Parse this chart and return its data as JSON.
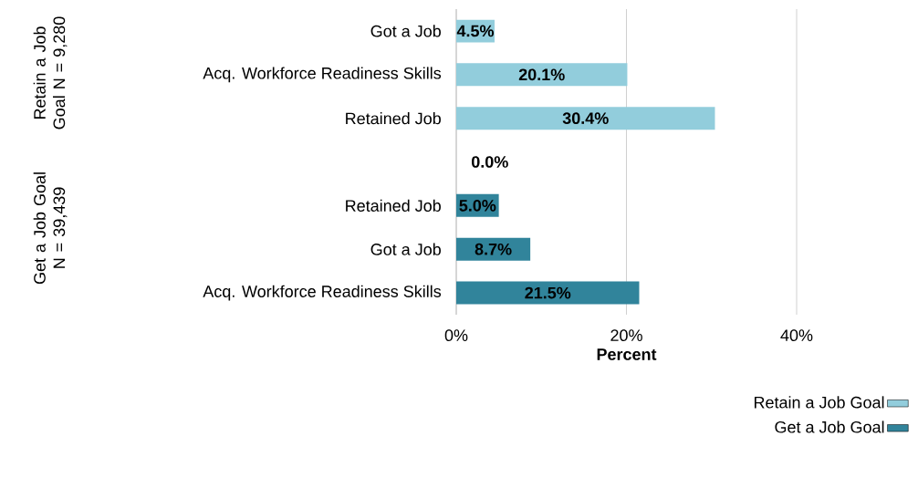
{
  "chart_data": {
    "type": "bar",
    "orientation": "horizontal",
    "xlabel": "Percent",
    "categories": [
      "Got a Job",
      "Acq. Workforce Readiness Skills",
      "Retained Job",
      null,
      "Retained Job",
      "Got a Job",
      "Acq. Workforce Readiness Skills"
    ],
    "series": [
      {
        "name": "Retain a Job Goal",
        "color": "#92cddc",
        "values": [
          4.5,
          20.1,
          30.4,
          null,
          null,
          null,
          null
        ],
        "value_labels": [
          "4.5%",
          "20.1%",
          "30.4%",
          null,
          null,
          null,
          null
        ]
      },
      {
        "name": "Get a Job Goal",
        "color": "#31849b",
        "values": [
          null,
          null,
          null,
          0.0,
          5.0,
          8.7,
          21.5
        ],
        "value_labels": [
          null,
          null,
          null,
          "0.0%",
          "5.0%",
          "8.7%",
          "21.5%"
        ]
      }
    ],
    "xlim": [
      0,
      40
    ],
    "xticks": [
      {
        "value": 0,
        "label": "0%"
      },
      {
        "value": 20,
        "label": "20%"
      },
      {
        "value": 40,
        "label": "40%"
      }
    ],
    "grid": "x",
    "legend": "bottom right",
    "annotations": [
      "Retain a Job Goal N = 9,280",
      "Get a Job Goal N = 39,439"
    ]
  }
}
